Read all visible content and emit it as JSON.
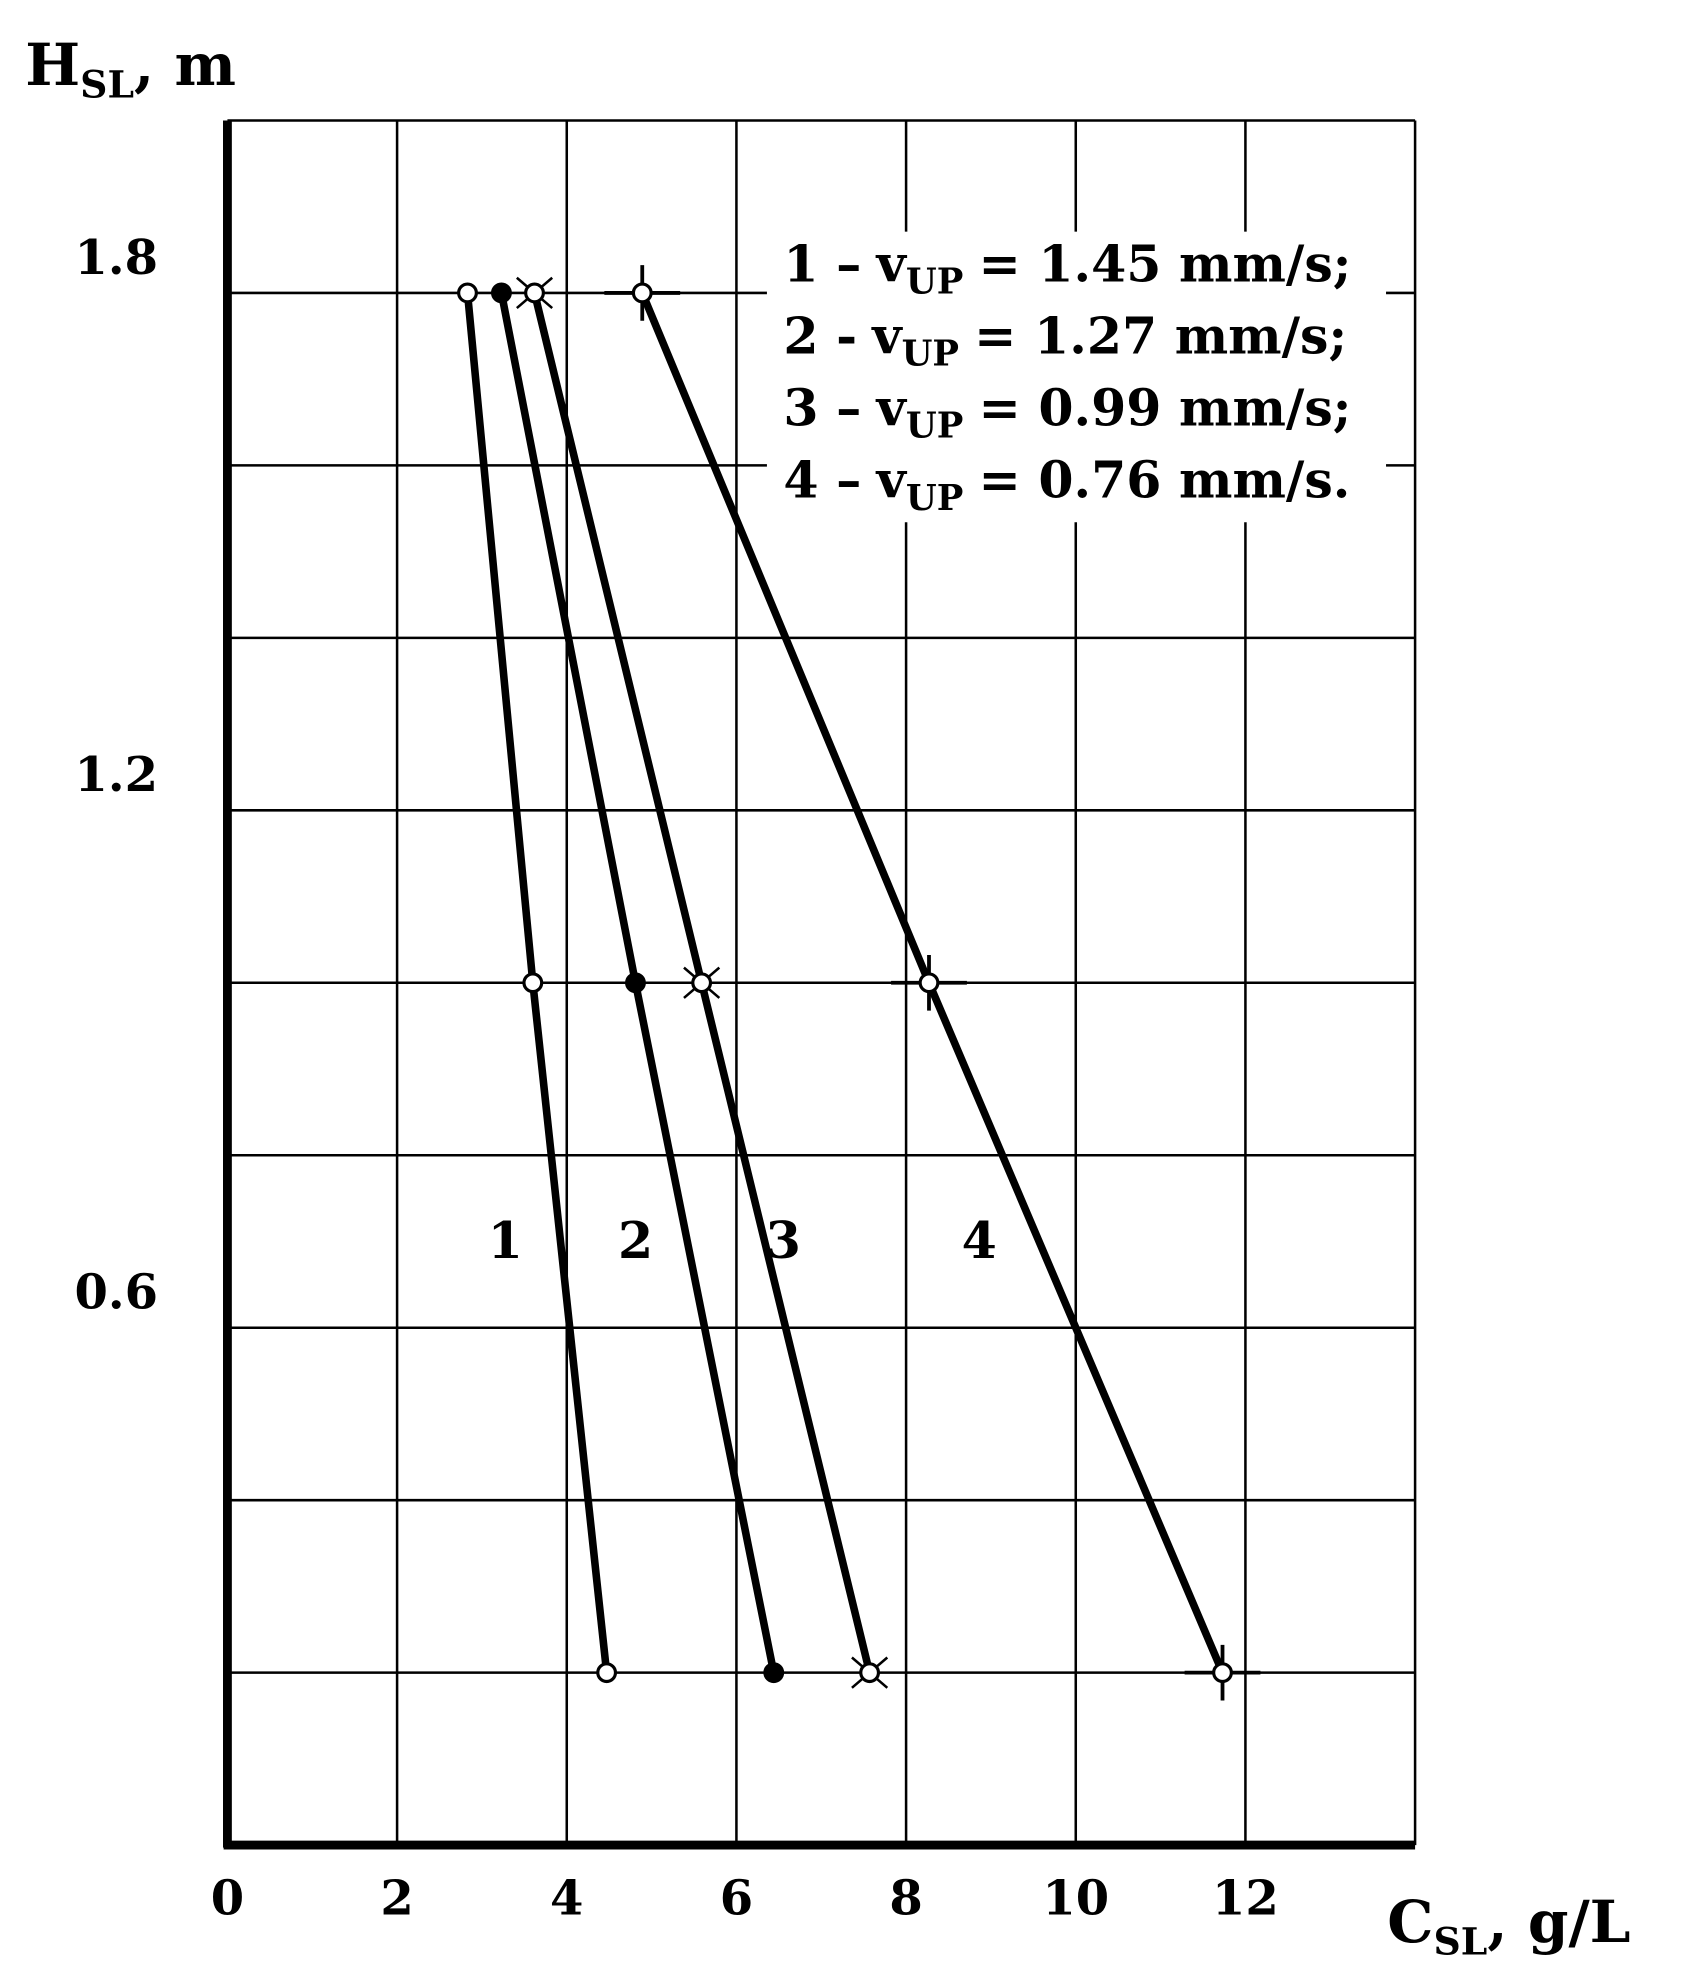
{
  "chart_data": {
    "type": "line",
    "y_label": {
      "main": "H",
      "sub": "SL",
      "rest": ", m"
    },
    "x_label": {
      "main": "C",
      "sub": "SL",
      "rest": ", g/L"
    },
    "xlim": [
      0,
      14
    ],
    "ylim": [
      0,
      2.0
    ],
    "xticks": [
      0,
      2,
      4,
      6,
      8,
      10,
      12
    ],
    "yticks": [
      0.6,
      1.2,
      1.8
    ],
    "xgrid": [
      2,
      4,
      6,
      8,
      10,
      12,
      14
    ],
    "ygrid": [
      0.2,
      0.4,
      0.6,
      0.8,
      1.0,
      1.2,
      1.4,
      1.6,
      1.8,
      2.0
    ],
    "series": [
      {
        "name": "1",
        "color": "#000000",
        "marker": "open",
        "x": [
          2.83,
          3.6,
          4.47
        ],
        "values": [
          1.8,
          1.0,
          0.2
        ]
      },
      {
        "name": "2",
        "color": "#000000",
        "marker": "filled",
        "x": [
          3.23,
          4.81,
          6.44
        ],
        "values": [
          1.8,
          1.0,
          0.2
        ]
      },
      {
        "name": "3",
        "color": "#000000",
        "marker": "open-x",
        "x": [
          3.62,
          5.59,
          7.57
        ],
        "values": [
          1.8,
          1.0,
          0.2
        ]
      },
      {
        "name": "4",
        "color": "#000000",
        "marker": "open-plus",
        "x": [
          4.89,
          8.27,
          11.73
        ],
        "values": [
          1.8,
          1.0,
          0.2
        ]
      }
    ],
    "legend": [
      {
        "prefix": "1 –",
        "var": "v",
        "sub": "UP",
        "text": "= 1.45 mm/s;"
      },
      {
        "prefix": "2 -",
        "var": "v",
        "sub": "UP",
        "text": "= 1.27 mm/s;"
      },
      {
        "prefix": "3 –",
        "var": "v",
        "sub": "UP",
        "text": "= 0.99 mm/s;"
      },
      {
        "prefix": "4 –",
        "var": "v",
        "sub": "UP",
        "text": "= 0.76 mm/s."
      }
    ]
  }
}
